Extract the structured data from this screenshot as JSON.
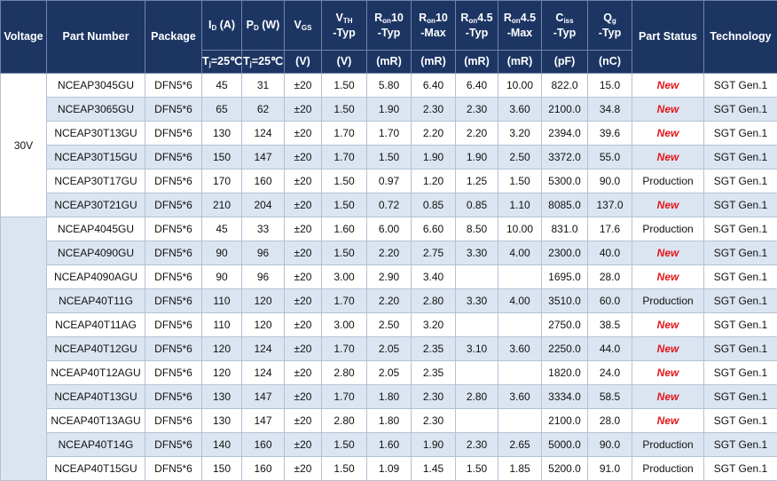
{
  "header": {
    "columns": [
      [
        [
          {
            "text": "Voltage"
          }
        ]
      ],
      [
        [
          {
            "text": "Part Number"
          }
        ]
      ],
      [
        [
          {
            "text": "Package"
          }
        ]
      ],
      [
        [
          {
            "text": "I"
          },
          {
            "text": "D",
            "sub": true
          },
          {
            "text": " (A)"
          }
        ]
      ],
      [
        [
          {
            "text": "P"
          },
          {
            "text": "D",
            "sub": true
          },
          {
            "text": " (W)"
          }
        ]
      ],
      [
        [
          {
            "text": "V"
          },
          {
            "text": "GS",
            "sub": true
          }
        ]
      ],
      [
        [
          {
            "text": "V"
          },
          {
            "text": "TH",
            "sub": true
          }
        ],
        [
          {
            "text": "-Typ"
          }
        ]
      ],
      [
        [
          {
            "text": "R"
          },
          {
            "text": "on",
            "sub": true
          },
          {
            "text": "10"
          }
        ],
        [
          {
            "text": "-Typ"
          }
        ]
      ],
      [
        [
          {
            "text": "R"
          },
          {
            "text": "on",
            "sub": true
          },
          {
            "text": "10"
          }
        ],
        [
          {
            "text": "-Max"
          }
        ]
      ],
      [
        [
          {
            "text": "R"
          },
          {
            "text": "on",
            "sub": true
          },
          {
            "text": "4.5"
          }
        ],
        [
          {
            "text": "-Typ"
          }
        ]
      ],
      [
        [
          {
            "text": "R"
          },
          {
            "text": "on",
            "sub": true
          },
          {
            "text": "4.5"
          }
        ],
        [
          {
            "text": "-Max"
          }
        ]
      ],
      [
        [
          {
            "text": "C"
          },
          {
            "text": "iss",
            "sub": true
          }
        ],
        [
          {
            "text": "-Typ"
          }
        ]
      ],
      [
        [
          {
            "text": "Q"
          },
          {
            "text": "g",
            "sub": true
          }
        ],
        [
          {
            "text": "-Typ"
          }
        ]
      ],
      [
        [
          {
            "text": "Part Status"
          }
        ]
      ],
      [
        [
          {
            "text": "Technology"
          }
        ]
      ]
    ],
    "units": [
      null,
      null,
      null,
      [
        {
          "text": "T"
        },
        {
          "text": "j",
          "sub": true
        },
        {
          "text": "=25℃"
        }
      ],
      [
        {
          "text": "T"
        },
        {
          "text": "j",
          "sub": true
        },
        {
          "text": "=25℃"
        }
      ],
      [
        {
          "text": "(V)"
        }
      ],
      [
        {
          "text": "(V)"
        }
      ],
      [
        {
          "text": "(mR)"
        }
      ],
      [
        {
          "text": "(mR)"
        }
      ],
      [
        {
          "text": "(mR)"
        }
      ],
      [
        {
          "text": "(mR)"
        }
      ],
      [
        {
          "text": "(pF)"
        }
      ],
      [
        {
          "text": "(nC)"
        }
      ],
      null,
      null
    ]
  },
  "groups": [
    {
      "voltage": "30V",
      "rows": [
        [
          "NCEAP3045GU",
          "DFN5*6",
          "45",
          "31",
          "±20",
          "1.50",
          "5.80",
          "6.40",
          "6.40",
          "10.00",
          "822.0",
          "15.0",
          {
            "text": "New",
            "highlight": true
          },
          "SGT Gen.1"
        ],
        [
          "NCEAP3065GU",
          "DFN5*6",
          "65",
          "62",
          "±20",
          "1.50",
          "1.90",
          "2.30",
          "2.30",
          "3.60",
          "2100.0",
          "34.8",
          {
            "text": "New",
            "highlight": true
          },
          "SGT Gen.1"
        ],
        [
          "NCEAP30T13GU",
          "DFN5*6",
          "130",
          "124",
          "±20",
          "1.70",
          "1.70",
          "2.20",
          "2.20",
          "3.20",
          "2394.0",
          "39.6",
          {
            "text": "New",
            "highlight": true
          },
          "SGT Gen.1"
        ],
        [
          "NCEAP30T15GU",
          "DFN5*6",
          "150",
          "147",
          "±20",
          "1.70",
          "1.50",
          "1.90",
          "1.90",
          "2.50",
          "3372.0",
          "55.0",
          {
            "text": "New",
            "highlight": true
          },
          "SGT Gen.1"
        ],
        [
          "NCEAP30T17GU",
          "DFN5*6",
          "170",
          "160",
          "±20",
          "1.50",
          "0.97",
          "1.20",
          "1.25",
          "1.50",
          "5300.0",
          "90.0",
          {
            "text": "Production"
          },
          "SGT Gen.1"
        ],
        [
          "NCEAP30T21GU",
          "DFN5*6",
          "210",
          "204",
          "±20",
          "1.50",
          "0.72",
          "0.85",
          "0.85",
          "1.10",
          "8085.0",
          "137.0",
          {
            "text": "New",
            "highlight": true
          },
          "SGT Gen.1"
        ]
      ]
    },
    {
      "shaded": true,
      "rows": [
        [
          "NCEAP4045GU",
          "DFN5*6",
          "45",
          "33",
          "±20",
          "1.60",
          "6.00",
          "6.60",
          "8.50",
          "10.00",
          "831.0",
          "17.6",
          {
            "text": "Production"
          },
          "SGT Gen.1"
        ],
        [
          "NCEAP4090GU",
          "DFN5*6",
          "90",
          "96",
          "±20",
          "1.50",
          "2.20",
          "2.75",
          "3.30",
          "4.00",
          "2300.0",
          "40.0",
          {
            "text": "New",
            "highlight": true
          },
          "SGT Gen.1"
        ],
        [
          "NCEAP4090AGU",
          "DFN5*6",
          "90",
          "96",
          "±20",
          "3.00",
          "2.90",
          "3.40",
          null,
          null,
          "1695.0",
          "28.0",
          {
            "text": "New",
            "highlight": true
          },
          "SGT Gen.1"
        ],
        [
          "NCEAP40T11G",
          "DFN5*6",
          "110",
          "120",
          "±20",
          "1.70",
          "2.20",
          "2.80",
          "3.30",
          "4.00",
          "3510.0",
          "60.0",
          {
            "text": "Production"
          },
          "SGT Gen.1"
        ],
        [
          "NCEAP40T11AG",
          "DFN5*6",
          "110",
          "120",
          "±20",
          "3.00",
          "2.50",
          "3.20",
          null,
          null,
          "2750.0",
          "38.5",
          {
            "text": "New",
            "highlight": true
          },
          "SGT Gen.1"
        ],
        [
          "NCEAP40T12GU",
          "DFN5*6",
          "120",
          "124",
          "±20",
          "1.70",
          "2.05",
          "2.35",
          "3.10",
          "3.60",
          "2250.0",
          "44.0",
          {
            "text": "New",
            "highlight": true
          },
          "SGT Gen.1"
        ],
        [
          "NCEAP40T12AGU",
          "DFN5*6",
          "120",
          "124",
          "±20",
          "2.80",
          "2.05",
          "2.35",
          null,
          null,
          "1820.0",
          "24.0",
          {
            "text": "New",
            "highlight": true
          },
          "SGT Gen.1"
        ],
        [
          "NCEAP40T13GU",
          "DFN5*6",
          "130",
          "147",
          "±20",
          "1.70",
          "1.80",
          "2.30",
          "2.80",
          "3.60",
          "3334.0",
          "58.5",
          {
            "text": "New",
            "highlight": true
          },
          "SGT Gen.1"
        ],
        [
          "NCEAP40T13AGU",
          "DFN5*6",
          "130",
          "147",
          "±20",
          "2.80",
          "1.80",
          "2.30",
          null,
          null,
          "2100.0",
          "28.0",
          {
            "text": "New",
            "highlight": true
          },
          "SGT Gen.1"
        ],
        [
          "NCEAP40T14G",
          "DFN5*6",
          "140",
          "160",
          "±20",
          "1.50",
          "1.60",
          "1.90",
          "2.30",
          "2.65",
          "5000.0",
          "90.0",
          {
            "text": "Production"
          },
          "SGT Gen.1"
        ],
        [
          "NCEAP40T15GU",
          "DFN5*6",
          "150",
          "160",
          "±20",
          "1.50",
          "1.09",
          "1.45",
          "1.50",
          "1.85",
          "5200.0",
          "91.0",
          {
            "text": "Production"
          },
          "SGT Gen.1"
        ]
      ]
    }
  ]
}
